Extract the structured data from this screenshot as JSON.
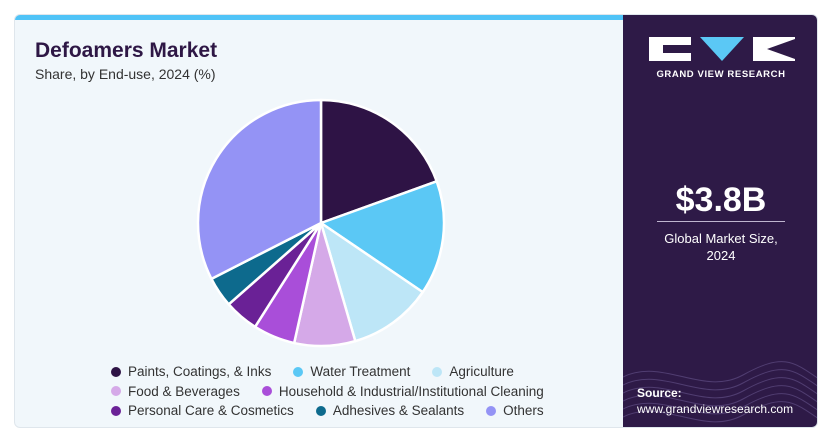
{
  "header": {
    "title": "Defoamers Market",
    "subtitle": "Share, by End-use, 2024 (%)"
  },
  "sidebar": {
    "brand": "GRAND VIEW RESEARCH",
    "market_size": "$3.8B",
    "caption_line1": "Global Market Size,",
    "caption_line2": "2024",
    "source_label": "Source:",
    "source_url": "www.grandviewresearch.com",
    "background_color": "#2e1a47"
  },
  "chart_data": {
    "type": "pie",
    "title": "Defoamers Market",
    "subtitle": "Share, by End-use, 2024 (%)",
    "start_angle_deg": 0,
    "direction": "clockwise",
    "legend_position": "bottom",
    "slices": [
      {
        "label": "Paints, Coatings, & Inks",
        "value": 19.5,
        "color": "#2e1345"
      },
      {
        "label": "Water Treatment",
        "value": 15.0,
        "color": "#5bc8f5"
      },
      {
        "label": "Agriculture",
        "value": 11.0,
        "color": "#bde6f7"
      },
      {
        "label": "Food & Beverages",
        "value": 8.0,
        "color": "#d5a9e8"
      },
      {
        "label": "Household & Industrial/Institutional Cleaning",
        "value": 5.5,
        "color": "#a94ed9"
      },
      {
        "label": "Personal Care & Cosmetics",
        "value": 4.5,
        "color": "#6a2196"
      },
      {
        "label": "Adhesives & Sealants",
        "value": 4.0,
        "color": "#0d6a8d"
      },
      {
        "label": "Others",
        "value": 32.5,
        "color": "#9493f5"
      }
    ]
  }
}
